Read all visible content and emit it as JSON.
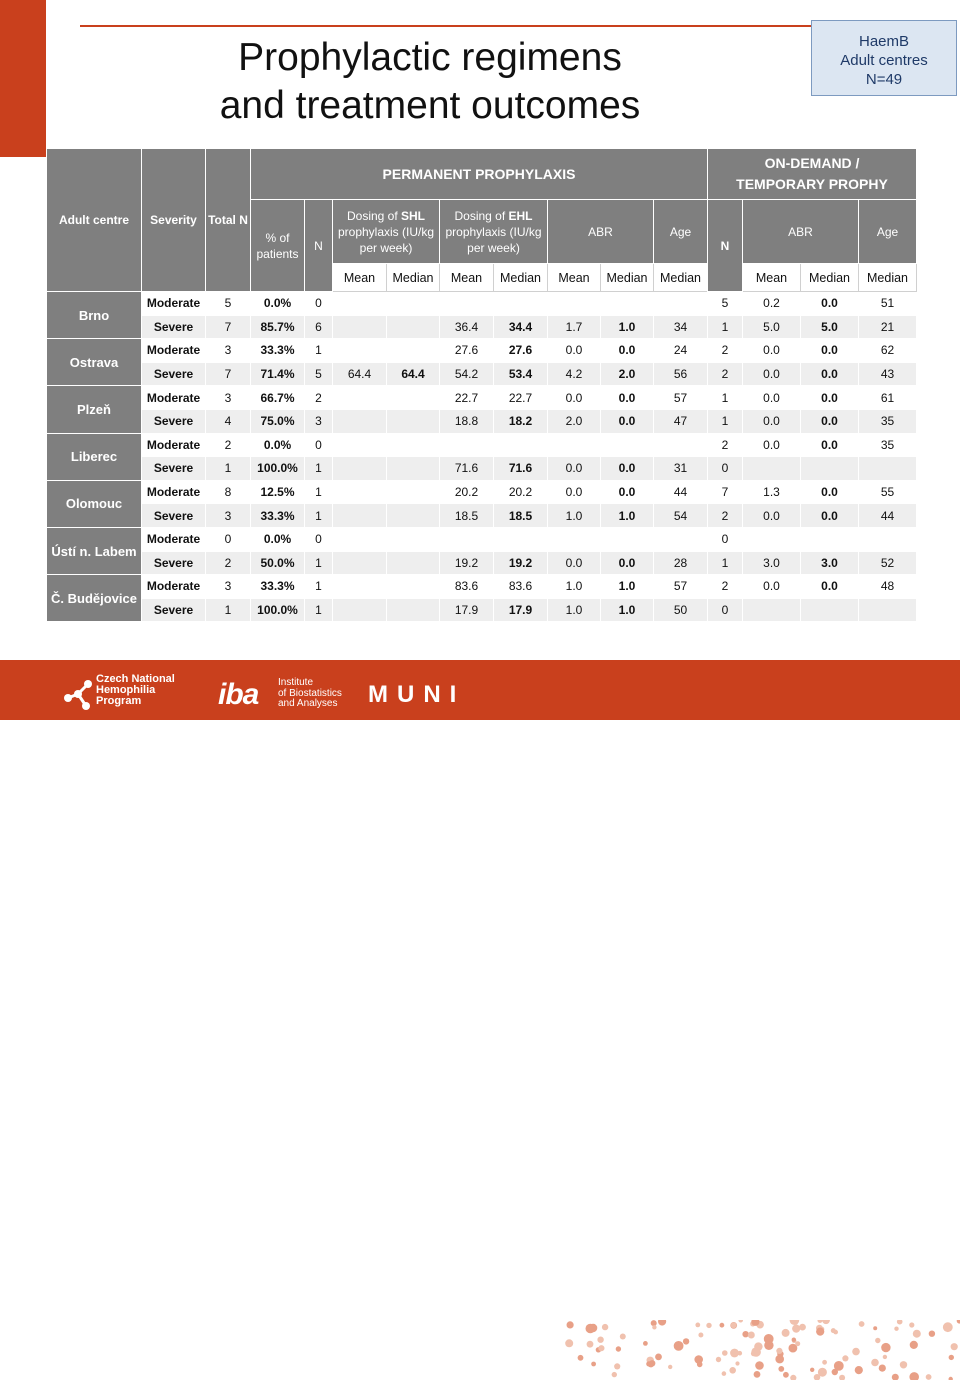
{
  "title_line1": "Prophylactic regimens",
  "title_line2": "and treatment outcomes",
  "info_box": {
    "line1": "HaemB",
    "line2": "Adult centres",
    "line3": "N=49"
  },
  "table": {
    "headers": {
      "adult_centre": "Adult centre",
      "severity": "Severity",
      "total_n": "Total N",
      "permanent": "PERMANENT PROPHYLAXIS",
      "on_demand_line1": "ON-DEMAND /",
      "on_demand_line2": "TEMPORARY PROPHY",
      "pct_patients": "% of patients",
      "n": "N",
      "dosing_shl_pre": "Dosing of ",
      "dosing_shl_bold": "SHL",
      "dosing_shl_post": "prophylaxis (IU/kg per week)",
      "dosing_ehl_pre": "Dosing of ",
      "dosing_ehl_bold": "EHL",
      "dosing_ehl_post": "prophylaxis (IU/kg per week)",
      "abr": "ABR",
      "age": "Age",
      "od_n": "N",
      "od_abr": "ABR",
      "od_age": "Age",
      "sub": [
        "Mean",
        "Median",
        "Mean",
        "Median",
        "Mean",
        "Median",
        "Median",
        "Mean",
        "Median",
        "Median"
      ]
    },
    "centres": [
      {
        "name": "Brno",
        "rows": [
          [
            "Moderate",
            "5",
            "0.0%",
            "0",
            "",
            "",
            "",
            "",
            "",
            "",
            "",
            "5",
            "0.2",
            "0.0",
            "51"
          ],
          [
            "Severe",
            "7",
            "85.7%",
            "6",
            "",
            "",
            "36.4",
            "34.4",
            "1.7",
            "1.0",
            "34",
            "1",
            "5.0",
            "5.0",
            "21"
          ]
        ]
      },
      {
        "name": "Ostrava",
        "rows": [
          [
            "Moderate",
            "3",
            "33.3%",
            "1",
            "",
            "",
            "27.6",
            "27.6",
            "0.0",
            "0.0",
            "24",
            "2",
            "0.0",
            "0.0",
            "62"
          ],
          [
            "Severe",
            "7",
            "71.4%",
            "5",
            "64.4",
            "64.4",
            "54.2",
            "53.4",
            "4.2",
            "2.0",
            "56",
            "2",
            "0.0",
            "0.0",
            "43"
          ]
        ]
      },
      {
        "name": "Plzeň",
        "rows": [
          [
            "Moderate",
            "3",
            "66.7%",
            "2",
            "",
            "",
            "22.7",
            "22.7",
            "0.0",
            "0.0",
            "57",
            "1",
            "0.0",
            "0.0",
            "61"
          ],
          [
            "Severe",
            "4",
            "75.0%",
            "3",
            "",
            "",
            "18.8",
            "18.2",
            "2.0",
            "0.0",
            "47",
            "1",
            "0.0",
            "0.0",
            "35"
          ]
        ]
      },
      {
        "name": "Liberec",
        "rows": [
          [
            "Moderate",
            "2",
            "0.0%",
            "0",
            "",
            "",
            "",
            "",
            "",
            "",
            "",
            "2",
            "0.0",
            "0.0",
            "35"
          ],
          [
            "Severe",
            "1",
            "100.0%",
            "1",
            "",
            "",
            "71.6",
            "71.6",
            "0.0",
            "0.0",
            "31",
            "0",
            "",
            "",
            ""
          ]
        ]
      },
      {
        "name": "Olomouc",
        "rows": [
          [
            "Moderate",
            "8",
            "12.5%",
            "1",
            "",
            "",
            "20.2",
            "20.2",
            "0.0",
            "0.0",
            "44",
            "7",
            "1.3",
            "0.0",
            "55"
          ],
          [
            "Severe",
            "3",
            "33.3%",
            "1",
            "",
            "",
            "18.5",
            "18.5",
            "1.0",
            "1.0",
            "54",
            "2",
            "0.0",
            "0.0",
            "44"
          ]
        ]
      },
      {
        "name": "Ústí n. Labem",
        "rows": [
          [
            "Moderate",
            "0",
            "0.0%",
            "0",
            "",
            "",
            "",
            "",
            "",
            "",
            "",
            "0",
            "",
            "",
            ""
          ],
          [
            "Severe",
            "2",
            "50.0%",
            "1",
            "",
            "",
            "19.2",
            "19.2",
            "0.0",
            "0.0",
            "28",
            "1",
            "3.0",
            "3.0",
            "52"
          ]
        ]
      },
      {
        "name": "Č. Budějovice",
        "rows": [
          [
            "Moderate",
            "3",
            "33.3%",
            "1",
            "",
            "",
            "83.6",
            "83.6",
            "1.0",
            "1.0",
            "57",
            "2",
            "0.0",
            "0.0",
            "48"
          ],
          [
            "Severe",
            "1",
            "100.0%",
            "1",
            "",
            "",
            "17.9",
            "17.9",
            "1.0",
            "1.0",
            "50",
            "0",
            "",
            "",
            ""
          ]
        ]
      }
    ]
  },
  "footer": {
    "cnhp_line1": "Czech National",
    "cnhp_line2": "Hemophilia",
    "cnhp_line3": "Program",
    "iba_mark": "iba",
    "iba_line1": "Institute",
    "iba_line2": "of Biostatistics",
    "iba_line3": "and Analyses",
    "muni": "MUNI"
  }
}
